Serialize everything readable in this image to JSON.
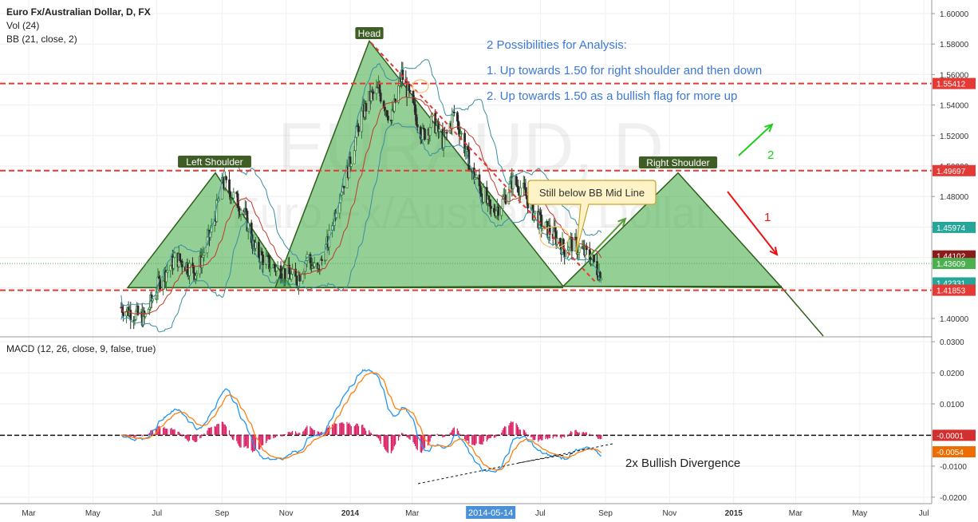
{
  "header": {
    "title": "Euro Fx/Australian Dollar, D, FX",
    "vol": "Vol (24)",
    "bb": "BB (21, close, 2)"
  },
  "watermark": {
    "line1": "EURAUD, D",
    "line2": "Euro Fx/Australian Dollar"
  },
  "colors": {
    "candle_up": "#2e7d32",
    "candle_down": "#2b2b2b",
    "pattern_fill": "#4caf50",
    "pattern_stroke": "#2e5e1a",
    "bb_band": "#3a8fa0",
    "bb_mid": "#c0392b",
    "red_level": "#e53935",
    "macd_line": "#2196f3",
    "signal_line": "#ff7f0e",
    "hist": "#d81b60",
    "annotation_blue": "#3c78d8",
    "green_arrow": "#22cc22",
    "red_arrow": "#ee1111"
  },
  "chart_data": [
    {
      "type": "candlestick",
      "title": "Euro Fx/Australian Dollar, D, FX",
      "ylim": [
        1.39,
        1.605
      ],
      "y_ticks": [
        1.4,
        1.42,
        1.44,
        1.46,
        1.48,
        1.5,
        1.52,
        1.54,
        1.56,
        1.58,
        1.6
      ],
      "y_tick_labels": [
        "1.40000",
        "1.42000",
        "1.44000",
        "1.46000",
        "1.48000",
        "1.50000",
        "1.52000",
        "1.54000",
        "1.56000",
        "1.58000",
        "1.60000"
      ],
      "x_labels": [
        "Mar",
        "May",
        "Jul",
        "Sep",
        "Nov",
        "2014",
        "Mar",
        "2014-05-14",
        "Jul",
        "Sep",
        "Nov",
        "2015",
        "Mar",
        "May",
        "Jul"
      ],
      "price_tags": [
        {
          "label": "1.55412",
          "value": 1.55412,
          "color": "#e53935"
        },
        {
          "label": "1.49697",
          "value": 1.49697,
          "color": "#e53935"
        },
        {
          "label": "1.45974",
          "value": 1.45974,
          "color": "#26a69a"
        },
        {
          "label": "1.44102",
          "value": 1.44102,
          "color": "#8b1a1a"
        },
        {
          "label": "1.43609",
          "value": 1.43609,
          "color": "#4caf50"
        },
        {
          "label": "1.42331",
          "value": 1.42331,
          "color": "#26a69a"
        },
        {
          "label": "1.41853",
          "value": 1.41853,
          "color": "#e53935"
        }
      ],
      "horizontal_levels": [
        1.55412,
        1.49697,
        1.41853
      ],
      "current_price": 1.43609,
      "pattern_points": [
        {
          "label": "Left Shoulder"
        },
        {
          "label": "Head"
        },
        {
          "label": "Right Shoulder"
        }
      ],
      "grid": true
    },
    {
      "type": "line",
      "title": "MACD (12, 26, close, 9, false, true)",
      "ylim": [
        -0.022,
        0.032
      ],
      "y_ticks": [
        -0.02,
        -0.01,
        0.0,
        0.01,
        0.02,
        0.03
      ],
      "y_tick_labels": [
        "-0.0200",
        "-0.0100",
        "0.0000",
        "0.0100",
        "0.0200",
        "0.0300"
      ],
      "value_tags": [
        {
          "label": "-0.0001",
          "value": -0.0001,
          "color": "#d32f2f"
        },
        {
          "label": "-0.0054",
          "value": -0.0054,
          "color": "#ef6c00"
        }
      ],
      "series": [
        {
          "name": "MACD",
          "color": "#2196f3"
        },
        {
          "name": "Signal",
          "color": "#ff7f0e"
        },
        {
          "name": "Histogram",
          "color": "#d81b60"
        }
      ]
    }
  ],
  "annotations": {
    "analysis_title": "2 Possibilities for Analysis:",
    "analysis_1": "1. Up towards 1.50 for right shoulder and then down",
    "analysis_2": "2. Up towards 1.50 as a bullish flag for more up",
    "callout": "Still below BB Mid Line",
    "divergence": "2x Bullish Divergence",
    "arrow_green_label": "2",
    "arrow_red_label": "1",
    "label_left_shoulder": "Left Shoulder",
    "label_head": "Head",
    "label_right_shoulder": "Right Shoulder"
  }
}
